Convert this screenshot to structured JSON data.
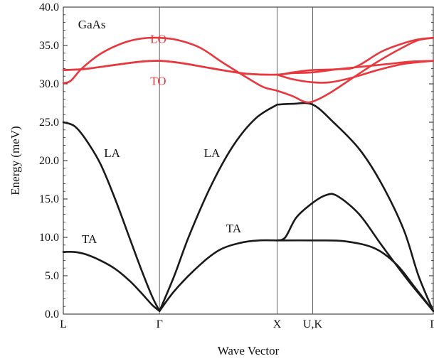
{
  "chart_data": {
    "type": "line",
    "title": "",
    "material_label": "GaAs",
    "xlabel": "Wave Vector",
    "ylabel": "Energy (meV)",
    "ylim": [
      0,
      40
    ],
    "xlim": [
      0,
      1
    ],
    "yticks": [
      "0.0",
      "5.0",
      "10.0",
      "15.0",
      "20.0",
      "25.0",
      "30.0",
      "35.0",
      "40.0"
    ],
    "high_symmetry_points": [
      {
        "label": "L",
        "x": 0
      },
      {
        "label": "Γ",
        "x": 0.26
      },
      {
        "label": "X",
        "x": 0.578
      },
      {
        "label": "U,K",
        "x": 0.674
      },
      {
        "label": "Γ",
        "x": 1
      }
    ],
    "colors": {
      "acoustic": "#1a1a1a",
      "optical": "#e8373d",
      "grid": "#555555"
    },
    "series": [
      {
        "group": "acoustic",
        "points": [
          [
            0,
            8.1
          ],
          [
            0.03,
            8.1
          ],
          [
            0.06,
            7.8
          ],
          [
            0.1,
            7.0
          ],
          [
            0.14,
            5.9
          ],
          [
            0.18,
            4.3
          ],
          [
            0.21,
            2.8
          ],
          [
            0.24,
            1.2
          ],
          [
            0.26,
            0.4
          ]
        ]
      },
      {
        "group": "acoustic",
        "points": [
          [
            0,
            25
          ],
          [
            0.03,
            24.5
          ],
          [
            0.06,
            22.8
          ],
          [
            0.1,
            19.6
          ],
          [
            0.14,
            15.0
          ],
          [
            0.18,
            9.8
          ],
          [
            0.21,
            5.9
          ],
          [
            0.24,
            2.3
          ],
          [
            0.26,
            0.4
          ]
        ]
      },
      {
        "group": "acoustic",
        "points": [
          [
            0.26,
            0.4
          ],
          [
            0.3,
            3.0
          ],
          [
            0.36,
            6.0
          ],
          [
            0.42,
            8.3
          ],
          [
            0.48,
            9.3
          ],
          [
            0.53,
            9.6
          ],
          [
            0.578,
            9.6
          ]
        ]
      },
      {
        "group": "acoustic",
        "points": [
          [
            0.26,
            0.4
          ],
          [
            0.3,
            5.0
          ],
          [
            0.34,
            10.2
          ],
          [
            0.4,
            16.8
          ],
          [
            0.46,
            22.0
          ],
          [
            0.52,
            25.5
          ],
          [
            0.578,
            27.3
          ]
        ]
      },
      {
        "group": "acoustic",
        "points": [
          [
            0.578,
            9.6
          ],
          [
            0.674,
            9.6
          ],
          [
            0.76,
            9.5
          ],
          [
            0.84,
            8.6
          ],
          [
            0.9,
            6.5
          ],
          [
            0.95,
            3.5
          ],
          [
            1.0,
            0.4
          ]
        ]
      },
      {
        "group": "acoustic",
        "points": [
          [
            0.578,
            9.6
          ],
          [
            0.6,
            10.0
          ],
          [
            0.63,
            12.6
          ],
          [
            0.674,
            14.5
          ],
          [
            0.71,
            15.5
          ],
          [
            0.74,
            15.4
          ],
          [
            0.8,
            13.0
          ],
          [
            0.86,
            9.0
          ],
          [
            0.93,
            4.5
          ],
          [
            1.0,
            0.4
          ]
        ]
      },
      {
        "group": "acoustic",
        "points": [
          [
            0.578,
            27.3
          ],
          [
            0.62,
            27.4
          ],
          [
            0.674,
            27.3
          ],
          [
            0.73,
            25.0
          ],
          [
            0.8,
            21.5
          ],
          [
            0.86,
            17.0
          ],
          [
            0.92,
            11.0
          ],
          [
            0.96,
            5.0
          ],
          [
            1.0,
            0.4
          ]
        ]
      },
      {
        "group": "optical",
        "points": [
          [
            0,
            30.1
          ],
          [
            0.02,
            30.4
          ],
          [
            0.05,
            32.0
          ],
          [
            0.1,
            33.9
          ],
          [
            0.16,
            35.3
          ],
          [
            0.21,
            35.9
          ],
          [
            0.26,
            36.0
          ],
          [
            0.31,
            35.7
          ],
          [
            0.37,
            34.7
          ],
          [
            0.43,
            32.8
          ],
          [
            0.49,
            31.0
          ],
          [
            0.54,
            29.6
          ],
          [
            0.578,
            29.1
          ],
          [
            0.62,
            28.4
          ],
          [
            0.65,
            27.7
          ],
          [
            0.674,
            27.7
          ],
          [
            0.72,
            28.8
          ],
          [
            0.78,
            30.7
          ],
          [
            0.85,
            32.9
          ],
          [
            0.92,
            34.8
          ],
          [
            0.96,
            35.7
          ],
          [
            1.0,
            36.0
          ]
        ]
      },
      {
        "group": "optical",
        "points": [
          [
            0,
            31.8
          ],
          [
            0.05,
            31.9
          ],
          [
            0.1,
            32.2
          ],
          [
            0.16,
            32.6
          ],
          [
            0.21,
            32.9
          ],
          [
            0.26,
            33.0
          ],
          [
            0.32,
            32.7
          ],
          [
            0.38,
            32.2
          ],
          [
            0.44,
            31.7
          ],
          [
            0.5,
            31.3
          ],
          [
            0.578,
            31.2
          ],
          [
            0.62,
            31.4
          ],
          [
            0.674,
            31.5
          ],
          [
            0.74,
            31.9
          ],
          [
            0.8,
            32.2
          ],
          [
            0.88,
            32.6
          ],
          [
            0.94,
            32.9
          ],
          [
            1.0,
            33.0
          ]
        ]
      },
      {
        "group": "optical",
        "points": [
          [
            0,
            31.8
          ],
          [
            0.05,
            31.9
          ],
          [
            0.1,
            32.2
          ],
          [
            0.16,
            32.6
          ],
          [
            0.21,
            32.9
          ],
          [
            0.26,
            33.0
          ],
          [
            0.32,
            32.7
          ],
          [
            0.38,
            32.2
          ],
          [
            0.44,
            31.7
          ],
          [
            0.5,
            31.3
          ],
          [
            0.578,
            31.2
          ],
          [
            0.62,
            31.5
          ],
          [
            0.674,
            31.8
          ],
          [
            0.74,
            31.9
          ],
          [
            0.79,
            32.2
          ],
          [
            0.86,
            34.2
          ],
          [
            0.92,
            35.3
          ],
          [
            0.96,
            35.8
          ],
          [
            1.0,
            36.0
          ]
        ]
      },
      {
        "group": "optical",
        "points": [
          [
            0.578,
            31.2
          ],
          [
            0.62,
            30.6
          ],
          [
            0.674,
            30.2
          ],
          [
            0.72,
            30.2
          ],
          [
            0.78,
            30.8
          ],
          [
            0.85,
            31.8
          ],
          [
            0.92,
            32.6
          ],
          [
            1.0,
            33.0
          ]
        ]
      }
    ],
    "annotations": [
      {
        "text": "GaAs",
        "x": 0.04,
        "y": 37.8,
        "color": "#111111"
      },
      {
        "text": "LO",
        "x": 0.235,
        "y": 35.9,
        "color": "#e8373d"
      },
      {
        "text": "TO",
        "x": 0.235,
        "y": 30.4,
        "color": "#e8373d"
      },
      {
        "text": "LA",
        "x": 0.11,
        "y": 21.0,
        "color": "#111111"
      },
      {
        "text": "LA",
        "x": 0.38,
        "y": 21.0,
        "color": "#111111"
      },
      {
        "text": "TA",
        "x": 0.05,
        "y": 9.8,
        "color": "#111111"
      },
      {
        "text": "TA",
        "x": 0.44,
        "y": 11.2,
        "color": "#111111"
      }
    ]
  }
}
